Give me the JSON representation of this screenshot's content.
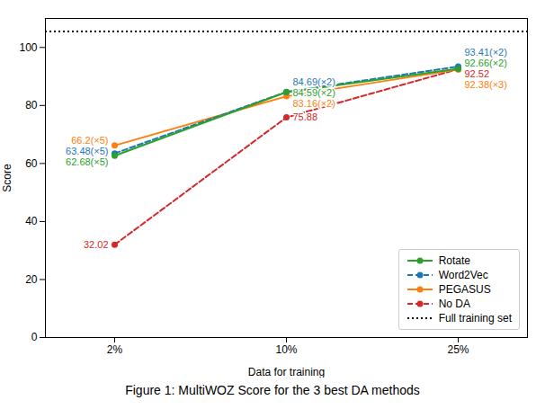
{
  "chart_data": {
    "type": "line",
    "caption": "Figure 1: MultiWOZ Score for the 3 best DA methods",
    "xlabel": "Data for training",
    "ylabel": "Score",
    "categories": [
      "2%",
      "10%",
      "25%"
    ],
    "series": [
      {
        "name": "Rotate",
        "color": "#2ca02c",
        "line_style": "solid",
        "marker": "circle",
        "values": [
          62.68,
          84.59,
          92.66
        ]
      },
      {
        "name": "Word2Vec",
        "color": "#1f77b4",
        "line_style": "dashed",
        "marker": "circle",
        "values": [
          63.48,
          84.69,
          93.41
        ]
      },
      {
        "name": "PEGASUS",
        "color": "#ff7f0e",
        "line_style": "solid",
        "marker": "circle",
        "values": [
          66.2,
          83.16,
          92.38
        ]
      },
      {
        "name": "No DA",
        "color": "#d62728",
        "line_style": "dashed",
        "marker": "circle",
        "values": [
          32.02,
          75.88,
          92.52
        ]
      },
      {
        "name": "Full training set",
        "type": "hline",
        "color": "#000000",
        "line_style": "dotted",
        "y": 105.5
      }
    ],
    "annotations": [
      {
        "text": "66.2(×5)",
        "color": "#ff7f0e",
        "x": "2%",
        "y": 66.2
      },
      {
        "text": "63.48(×5)",
        "color": "#1f77b4",
        "x": "2%",
        "y": 63.48
      },
      {
        "text": "62.68(×5)",
        "color": "#2ca02c",
        "x": "2%",
        "y": 62.68
      },
      {
        "text": "32.02",
        "color": "#d62728",
        "x": "2%",
        "y": 32.02
      },
      {
        "text": "84.69(×2)",
        "color": "#1f77b4",
        "x": "10%",
        "y": 84.69
      },
      {
        "text": "84.59(×2)",
        "color": "#2ca02c",
        "x": "10%",
        "y": 84.59
      },
      {
        "text": "83.16(×2)",
        "color": "#ff7f0e",
        "x": "10%",
        "y": 83.16
      },
      {
        "text": "75.88",
        "color": "#d62728",
        "x": "10%",
        "y": 75.88
      },
      {
        "text": "93.41(×2)",
        "color": "#1f77b4",
        "x": "25%",
        "y": 93.41
      },
      {
        "text": "92.66(×2)",
        "color": "#2ca02c",
        "x": "25%",
        "y": 92.66
      },
      {
        "text": "92.52",
        "color": "#d62728",
        "x": "25%",
        "y": 92.52
      },
      {
        "text": "92.38(×3)",
        "color": "#ff7f0e",
        "x": "25%",
        "y": 92.38
      }
    ],
    "ylim": [
      0,
      110
    ],
    "yticks": [
      0,
      20,
      40,
      60,
      80,
      100
    ],
    "legend": "lower right",
    "grid": false
  }
}
